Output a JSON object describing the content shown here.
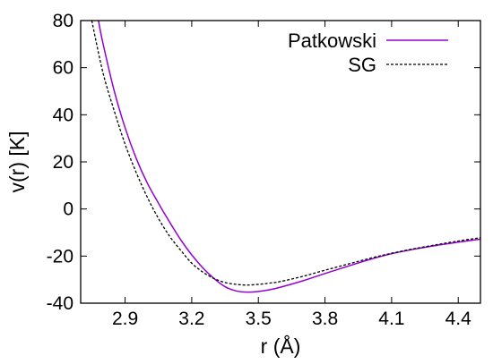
{
  "chart_data": {
    "type": "line",
    "title": "",
    "xlabel": "r (Å)",
    "ylabel": "v(r) [K]",
    "xlim": [
      2.7,
      4.5
    ],
    "ylim": [
      -40,
      80
    ],
    "x_ticks": [
      2.9,
      3.2,
      3.5,
      3.8,
      4.1,
      4.4
    ],
    "x_tick_labels": [
      "2.9",
      "3.2",
      "3.5",
      "3.8",
      "4.1",
      "4.4"
    ],
    "y_ticks": [
      -40,
      -20,
      0,
      20,
      40,
      60,
      80
    ],
    "y_tick_labels": [
      "-40",
      "-20",
      "0",
      "20",
      "40",
      "60",
      "80"
    ],
    "grid": false,
    "legend_position": "top-right",
    "series": [
      {
        "name": "Patkowski",
        "color": "#9400d3",
        "style": "solid",
        "x": [
          2.78,
          2.8,
          2.85,
          2.9,
          2.95,
          3.0,
          3.05,
          3.1,
          3.15,
          3.2,
          3.25,
          3.3,
          3.35,
          3.4,
          3.45,
          3.5,
          3.55,
          3.6,
          3.7,
          3.8,
          3.9,
          4.0,
          4.1,
          4.2,
          4.3,
          4.4,
          4.5
        ],
        "y": [
          80.0,
          70.5,
          50.5,
          34.5,
          21.5,
          11.0,
          2.5,
          -5.5,
          -13.0,
          -19.5,
          -25.0,
          -29.5,
          -33.0,
          -34.8,
          -35.3,
          -35.0,
          -34.3,
          -33.2,
          -30.5,
          -27.4,
          -24.4,
          -21.5,
          -19.0,
          -17.1,
          -15.5,
          -14.1,
          -12.8
        ]
      },
      {
        "name": "SG",
        "color": "#000000",
        "style": "dashed",
        "x": [
          2.75,
          2.8,
          2.85,
          2.9,
          2.95,
          3.0,
          3.05,
          3.1,
          3.15,
          3.2,
          3.25,
          3.3,
          3.35,
          3.4,
          3.45,
          3.5,
          3.55,
          3.6,
          3.7,
          3.8,
          3.9,
          4.0,
          4.1,
          4.2,
          4.3,
          4.4,
          4.5
        ],
        "y": [
          80.0,
          58.0,
          42.0,
          27.5,
          15.5,
          5.0,
          -4.0,
          -11.5,
          -17.5,
          -23.0,
          -26.8,
          -29.5,
          -31.2,
          -32.0,
          -32.3,
          -32.0,
          -31.5,
          -30.8,
          -28.6,
          -26.0,
          -23.5,
          -21.0,
          -18.8,
          -16.9,
          -15.2,
          -13.6,
          -12.2
        ]
      }
    ]
  }
}
